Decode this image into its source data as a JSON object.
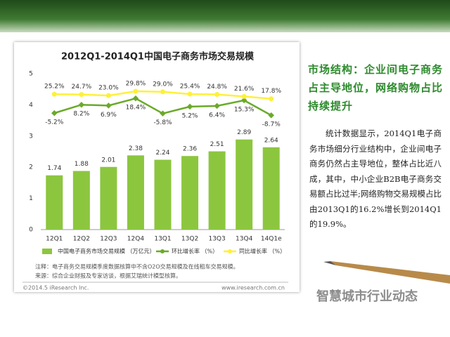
{
  "chart_data": {
    "type": "bar",
    "title": "2012Q1-2014Q1中国电子商务市场交易规模",
    "categories": [
      "12Q1",
      "12Q2",
      "12Q3",
      "12Q4",
      "13Q1",
      "13Q2",
      "13Q3",
      "13Q4",
      "14Q1e"
    ],
    "series": [
      {
        "name": "中国电子商务市场交易规模 （万亿元）",
        "type": "bar",
        "color": "#8cc63f",
        "values": [
          1.74,
          1.88,
          2.01,
          2.38,
          2.24,
          2.36,
          2.51,
          2.89,
          2.64
        ]
      },
      {
        "name": "环比增长率 （%）",
        "type": "line",
        "axis": "y2",
        "color": "#6aaa2a",
        "values": [
          -5.2,
          8.2,
          6.9,
          18.4,
          -5.8,
          5.2,
          6.4,
          15.3,
          -8.7
        ],
        "value_labels": [
          "-5.2%",
          "8.2%",
          "6.9%",
          "18.4%",
          "-5.8%",
          "5.2%",
          "6.4%",
          "15.3%",
          "-8.7%"
        ]
      },
      {
        "name": "同比增长率 （%）",
        "type": "line",
        "axis": "y2",
        "color": "#fff03a",
        "values": [
          25.2,
          24.7,
          23.0,
          29.8,
          29.0,
          25.4,
          24.8,
          21.6,
          17.8
        ],
        "value_labels": [
          "25.2%",
          "24.7%",
          "23.0%",
          "29.8%",
          "29.0%",
          "25.4%",
          "24.8%",
          "21.6%",
          "17.8%"
        ]
      }
    ],
    "ylim": [
      0,
      5
    ],
    "yticks": [
      0,
      1,
      2,
      3,
      4,
      5
    ],
    "y2lim": [
      -192,
      58
    ],
    "notes": [
      "注释：电子商务交易规模季度数据核算中不含O2O交易规模及在线租车交易规模。",
      "来源：综合企业财报及专家访谈，根据艾瑞统计模型核算。"
    ],
    "copyright": "©2014.5 iResearch Inc.",
    "website": "www.iresearch.com.cn"
  },
  "slide": {
    "heading": "市场结构：企业间电子商务占主导地位，网络购物占比持续提升",
    "body": "统计数据显示，2014Q1电子商务市场细分行业结构中，企业间电子商务仍然占主导地位，整体占比近八成，其中，中小企业B2B电子商务交易额占比过半;网络购物交易规模占比由2013Q1的16.2%增长到2014Q1的19.9%。",
    "watermark": "智慧城市行业动态"
  }
}
